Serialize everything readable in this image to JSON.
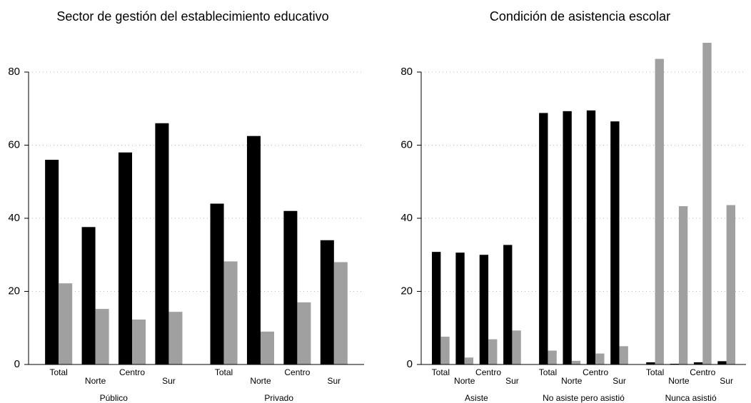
{
  "chart_data": [
    {
      "type": "bar",
      "title": "Sector de gestión del establecimiento educativo",
      "groups": [
        "Público",
        "Privado"
      ],
      "categories": [
        "Total",
        "Norte",
        "Centro",
        "Sur",
        "Total",
        "Norte",
        "Centro",
        "Sur"
      ],
      "series": [
        {
          "color": "#000000",
          "values": [
            56,
            37.6,
            58,
            66,
            44,
            62.5,
            42,
            34
          ]
        },
        {
          "color": "#a0a0a0",
          "values": [
            22.2,
            15.2,
            12.3,
            14.4,
            28.2,
            9,
            17,
            28
          ]
        }
      ],
      "ylim": [
        0,
        88
      ],
      "yticks": [
        0,
        20,
        40,
        60,
        80
      ],
      "grid": true
    },
    {
      "type": "bar",
      "title": "Condición de asistencia escolar",
      "groups": [
        "Asiste",
        "No asiste pero asistió",
        "Nunca asistió"
      ],
      "categories": [
        "Total",
        "Norte",
        "Centro",
        "Sur",
        "Total",
        "Norte",
        "Centro",
        "Sur",
        "Total",
        "Norte",
        "Centro",
        "Sur"
      ],
      "series": [
        {
          "color": "#000000",
          "values": [
            30.8,
            30.6,
            30,
            32.7,
            68.8,
            69.3,
            69.5,
            66.5,
            0.6,
            0.2,
            0.6,
            0.9
          ]
        },
        {
          "color": "#a0a0a0",
          "values": [
            7.6,
            1.9,
            6.9,
            9.3,
            3.8,
            1,
            3,
            5,
            83.6,
            43.3,
            88,
            43.6
          ]
        }
      ],
      "ylim": [
        0,
        88
      ],
      "yticks": [
        0,
        20,
        40,
        60,
        80
      ],
      "grid": true
    }
  ]
}
